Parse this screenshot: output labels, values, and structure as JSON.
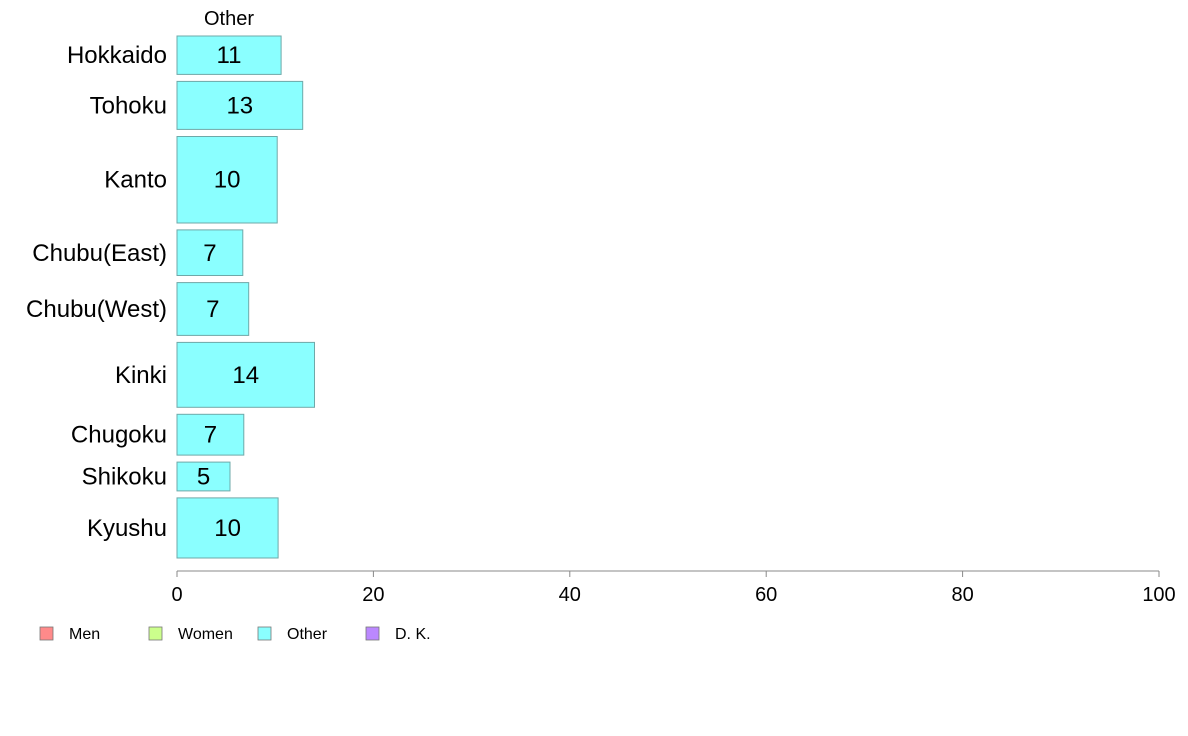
{
  "chart_data": {
    "type": "bar",
    "orientation": "horizontal",
    "series_header": "Other",
    "categories": [
      "Hokkaido",
      "Tohoku",
      "Kanto",
      "Chubu(East)",
      "Chubu(West)",
      "Kinki",
      "Chugoku",
      "Shikoku",
      "Kyushu"
    ],
    "values": [
      11,
      13,
      10,
      7,
      7,
      14,
      7,
      5,
      10
    ],
    "bar_values": [
      10.6,
      12.8,
      10.2,
      6.7,
      7.3,
      14.0,
      6.8,
      5.4,
      10.3
    ],
    "bar_weights": [
      0.8,
      1.0,
      1.8,
      0.95,
      1.1,
      1.35,
      0.85,
      0.6,
      1.25
    ],
    "xlim": [
      0,
      100
    ],
    "xticks": [
      "0",
      "20",
      "40",
      "60",
      "80",
      "100"
    ],
    "legend": {
      "placement": "bottom-left",
      "items": [
        {
          "label": "Men",
          "color": "#ff8a8a"
        },
        {
          "label": "Women",
          "color": "#ccff8c"
        },
        {
          "label": "Other",
          "color": "#8affff"
        },
        {
          "label": "D. K.",
          "color": "#bb88ff"
        }
      ]
    },
    "bar_color": "#8affff",
    "bar_stroke": "#6fa8a8"
  }
}
